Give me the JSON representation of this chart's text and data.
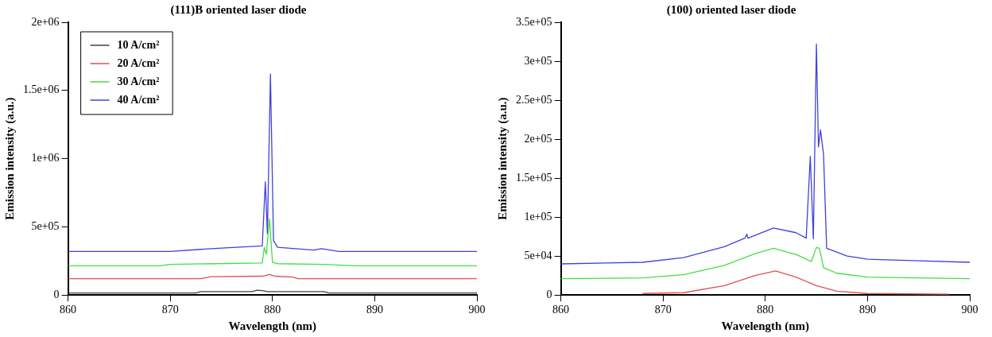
{
  "chart_data": [
    {
      "type": "line",
      "title": "(111)B oriented laser diode",
      "xlabel": "Wavelength (nm)",
      "ylabel": "Emission intensity (a.u.)",
      "xlim": [
        860,
        900
      ],
      "xticks": [
        860,
        870,
        880,
        890,
        900
      ],
      "ylim": [
        0,
        2000000
      ],
      "yticks": [
        {
          "value": 0,
          "label": "0"
        },
        {
          "value": 500000,
          "label": "5e+05"
        },
        {
          "value": 1000000,
          "label": "1e+06"
        },
        {
          "value": 1500000,
          "label": "1.5e+06"
        },
        {
          "value": 2000000,
          "label": "2e+06"
        }
      ],
      "legend": "top left",
      "grid": false,
      "marker": "none",
      "line_style": "solid",
      "series": [
        {
          "name": "10 A/cm²",
          "color": "#404040",
          "x": [
            860,
            872.5,
            873,
            878,
            878.5,
            879,
            879.5,
            885,
            885.5,
            900
          ],
          "values": [
            15000,
            15000,
            25000,
            25000,
            35000,
            32000,
            25000,
            25000,
            15000,
            15000
          ]
        },
        {
          "name": "20 A/cm²",
          "color": "#e05050",
          "x": [
            860,
            873,
            874,
            879,
            879.7,
            880.3,
            882,
            882.5,
            900
          ],
          "values": [
            120000,
            120000,
            135000,
            138000,
            150000,
            138000,
            132000,
            120000,
            120000
          ]
        },
        {
          "name": "30 A/cm²",
          "color": "#40e040",
          "x": [
            860,
            869,
            870,
            879,
            879.2,
            879.4,
            879.7,
            880,
            880.5,
            885,
            888,
            900
          ],
          "values": [
            215000,
            215000,
            225000,
            235000,
            350000,
            300000,
            560000,
            240000,
            230000,
            225000,
            215000,
            215000
          ]
        },
        {
          "name": "40 A/cm²",
          "color": "#4040e0",
          "x": [
            860,
            870,
            874,
            879,
            879.3,
            879.5,
            879.8,
            880.1,
            880.5,
            884,
            884.8,
            886.5,
            900
          ],
          "values": [
            320000,
            320000,
            340000,
            360000,
            830000,
            450000,
            1620000,
            400000,
            350000,
            330000,
            340000,
            320000,
            320000
          ]
        }
      ]
    },
    {
      "type": "line",
      "title": "(100) oriented laser diode",
      "xlabel": "Wavelength (nm)",
      "ylabel": "Emission intensity (a.u.)",
      "xlim": [
        860,
        900
      ],
      "xticks": [
        860,
        870,
        880,
        890,
        900
      ],
      "ylim": [
        0,
        350000
      ],
      "yticks": [
        {
          "value": 0,
          "label": "0"
        },
        {
          "value": 50000,
          "label": "5e+04"
        },
        {
          "value": 100000,
          "label": "1e+05"
        },
        {
          "value": 150000,
          "label": "1.5e+05"
        },
        {
          "value": 200000,
          "label": "2e+05"
        },
        {
          "value": 250000,
          "label": "2.5e+05"
        },
        {
          "value": 300000,
          "label": "3e+05"
        },
        {
          "value": 350000,
          "label": "3.5e+05"
        }
      ],
      "grid": false,
      "marker": "none",
      "line_style": "solid",
      "series": [
        {
          "color": "#e05050",
          "x": [
            868,
            872,
            876,
            879,
            881,
            883,
            885,
            887,
            890,
            898
          ],
          "values": [
            2000,
            3000,
            12000,
            25000,
            31000,
            23000,
            12000,
            5000,
            2000,
            1000
          ]
        },
        {
          "color": "#40e040",
          "x": [
            860,
            868,
            872,
            876,
            879,
            880.8,
            883,
            884.5,
            885,
            885.3,
            885.7,
            887,
            890,
            900
          ],
          "values": [
            21000,
            22000,
            26000,
            38000,
            53000,
            60000,
            52000,
            43000,
            61000,
            60000,
            35000,
            28000,
            23000,
            21000
          ]
        },
        {
          "color": "#4040e0",
          "x": [
            860,
            868,
            872,
            876,
            878,
            878.2,
            878.3,
            880.8,
            883,
            884,
            884.4,
            884.7,
            885,
            885.2,
            885.4,
            885.7,
            886,
            888,
            890,
            895,
            900
          ],
          "values": [
            40000,
            42000,
            48000,
            62000,
            73000,
            78000,
            73000,
            86000,
            80000,
            73000,
            178000,
            72000,
            322000,
            190000,
            212000,
            180000,
            60000,
            50000,
            46000,
            44000,
            42000
          ]
        }
      ]
    }
  ]
}
